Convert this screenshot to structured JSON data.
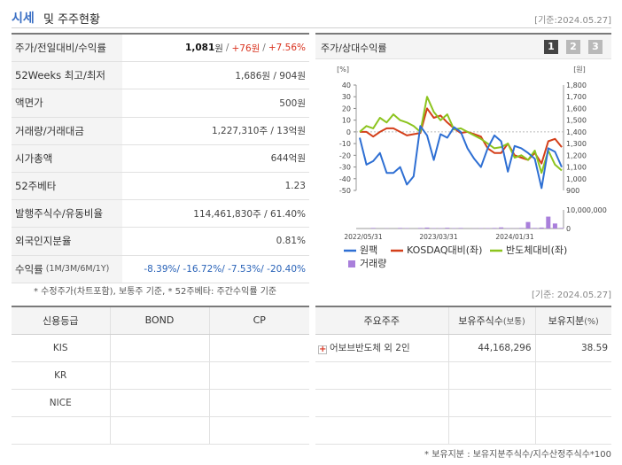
{
  "header": {
    "title_main": "시세",
    "title_rest": "및 주주현황",
    "date": "[기준:2024.05.27]"
  },
  "info": [
    {
      "label": "주가/전일대비/수익률",
      "price": "1,081",
      "unit": "원",
      "change": "+76원",
      "rate": "+7.56%"
    },
    {
      "label": "52Weeks 최고/최저",
      "value": "1,686원 / 904원"
    },
    {
      "label": "액면가",
      "value": "500원"
    },
    {
      "label": "거래량/거래대금",
      "value": "1,227,310주 / 13억원"
    },
    {
      "label": "시가총액",
      "value": "644억원"
    },
    {
      "label": "52주베타",
      "value": "1.23"
    },
    {
      "label": "발행주식수/유동비율",
      "value": "114,461,830주 / 61.40%"
    },
    {
      "label": "외국인지분율",
      "value": "0.81%"
    },
    {
      "label": "수익률",
      "label_small": "(1M/3M/6M/1Y)",
      "r1": "-8.39%",
      "r2": "-16.72%",
      "r3": "-7.53%",
      "r4": "-20.40%"
    }
  ],
  "note": "* 수정주가(차트포함), 보통주 기준, * 52주베타: 주간수익률 기준",
  "chart_panel": {
    "title": "주가/상대수익률",
    "pages": [
      "1",
      "2",
      "3"
    ]
  },
  "chart_data": {
    "type": "line",
    "left_unit": "[%]",
    "right_unit": "[원]",
    "y_left_ticks": [
      "40",
      "30",
      "20",
      "10",
      "0",
      "-10",
      "-20",
      "-30",
      "-40",
      "-50"
    ],
    "y_right_ticks": [
      "1,800",
      "1,700",
      "1,600",
      "1,500",
      "1,400",
      "1,300",
      "1,200",
      "1,100",
      "1,000",
      "900"
    ],
    "volume_tick": "10,000,000",
    "volume_zero": "0",
    "x_ticks": [
      "2022/05/31",
      "2023/03/31",
      "2024/01/31"
    ],
    "ylim": [
      -50,
      40
    ],
    "series": [
      {
        "name": "원팩",
        "color": "#2e6fd3",
        "values": [
          -5,
          -28,
          -25,
          -18,
          -35,
          -35,
          -30,
          -45,
          -38,
          5,
          -3,
          -24,
          -2,
          -5,
          4,
          0,
          -14,
          -23,
          -30,
          -14,
          -3,
          -8,
          -34,
          -12,
          -14,
          -18,
          -23,
          -48,
          -14,
          -17,
          -30
        ]
      },
      {
        "name": "KOSDAQ대비(좌)",
        "color": "#d43f1a",
        "values": [
          0,
          0,
          -4,
          0,
          3,
          3,
          0,
          -3,
          -2,
          -1,
          20,
          12,
          14,
          8,
          3,
          -1,
          0,
          -2,
          -4,
          -14,
          -18,
          -18,
          -10,
          -20,
          -22,
          -24,
          -18,
          -27,
          -8,
          -6,
          -13
        ]
      },
      {
        "name": "반도체대비(좌)",
        "color": "#8cc41e",
        "values": [
          0,
          5,
          3,
          12,
          8,
          15,
          10,
          8,
          5,
          0,
          30,
          17,
          10,
          15,
          2,
          3,
          0,
          -3,
          -6,
          -10,
          -14,
          -13,
          -10,
          -22,
          -20,
          -24,
          -16,
          -35,
          -16,
          -28,
          -33
        ]
      },
      {
        "name": "거래량",
        "color": "#a97fdb",
        "values": [
          0,
          0,
          0.03,
          0,
          0.01,
          0,
          0.03,
          0.02,
          0,
          0.03,
          0.05,
          0.02,
          0.02,
          0.04,
          0.02,
          0.03,
          0,
          0.01,
          0.02,
          0.02,
          0.03,
          0.06,
          0.02,
          0.01,
          0.03,
          0.35,
          0.03,
          0.05,
          0.64,
          0.27,
          0.03
        ]
      }
    ]
  },
  "date2": "[기준: 2024.05.27]",
  "credit": {
    "headers": [
      "신용등급",
      "BOND",
      "CP"
    ],
    "rows": [
      [
        "KIS",
        "",
        ""
      ],
      [
        "KR",
        "",
        ""
      ],
      [
        "NICE",
        "",
        ""
      ],
      [
        "",
        "",
        ""
      ]
    ]
  },
  "holder": {
    "headers": [
      "주요주주",
      "보유주식수",
      "(보통)",
      "보유지분",
      "(%)"
    ],
    "rows": [
      {
        "name": "어보브반도체 외 2인",
        "shares": "44,168,296",
        "pct": "38.59",
        "expand": "+"
      },
      {
        "name": "",
        "shares": "",
        "pct": ""
      },
      {
        "name": "",
        "shares": "",
        "pct": ""
      },
      {
        "name": "",
        "shares": "",
        "pct": ""
      }
    ]
  },
  "footnote": "* 보유지분 : 보유지분주식수/지수산정주식수*100"
}
